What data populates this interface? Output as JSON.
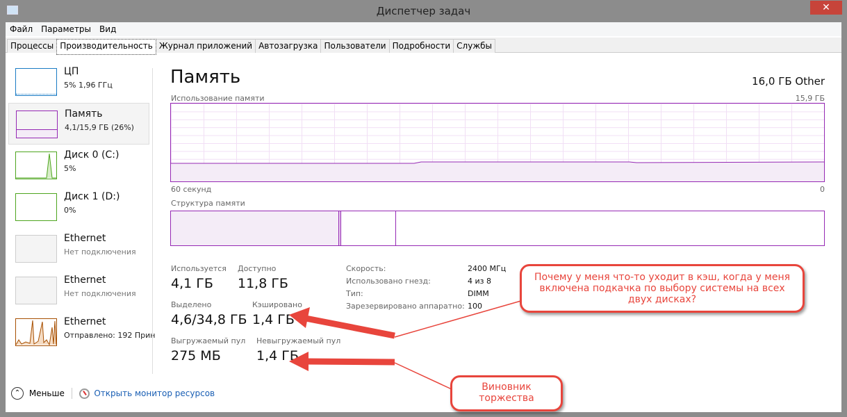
{
  "window": {
    "title": "Диспетчер задач",
    "close_icon": "close-icon"
  },
  "menu": [
    "Файл",
    "Параметры",
    "Вид"
  ],
  "tabs": [
    "Процессы",
    "Производительность",
    "Журнал приложений",
    "Автозагрузка",
    "Пользователи",
    "Подробности",
    "Службы"
  ],
  "active_tab": "Производительность",
  "sidebar": [
    {
      "name": "ЦП",
      "sub": "5%  1,96 ГГц",
      "color": "#1a7bc4"
    },
    {
      "name": "Память",
      "sub": "4,1/15,9 ГБ (26%)",
      "color": "#9528b4"
    },
    {
      "name": "Диск 0 (C:)",
      "sub": "5%",
      "color": "#4da51e"
    },
    {
      "name": "Диск 1 (D:)",
      "sub": "0%",
      "color": "#4da51e"
    },
    {
      "name": "Ethernet",
      "sub": "Нет подключения",
      "color": "#bbbbbb"
    },
    {
      "name": "Ethernet",
      "sub": "Нет подключения",
      "color": "#bbbbbb"
    },
    {
      "name": "Ethernet",
      "sub": "Отправлено: 192 Прин",
      "color": "#a74f01"
    }
  ],
  "main": {
    "title": "Память",
    "total": "16,0 ГБ Other",
    "usage_label": "Использование памяти",
    "usage_max": "15,9 ГБ",
    "time_left": "60 секунд",
    "time_right": "0",
    "structure_label": "Структура памяти",
    "stats": [
      {
        "label": "Используется",
        "value": "4,1 ГБ"
      },
      {
        "label": "Доступно",
        "value": "11,8 ГБ"
      },
      {
        "label": "Выделено",
        "value": "4,6/34,8 ГБ"
      },
      {
        "label": "Кэшировано",
        "value": "1,4 ГБ"
      },
      {
        "label": "Выгружаемый пул",
        "value": "275 МБ"
      },
      {
        "label": "Невыгружаемый пул",
        "value": "1,4 ГБ"
      }
    ],
    "details": [
      {
        "k": "Скорость:",
        "v": "2400 МГц"
      },
      {
        "k": "Использовано гнезд:",
        "v": "4 из 8"
      },
      {
        "k": "Тип:",
        "v": "DIMM"
      },
      {
        "k": "Зарезервировано аппаратно:",
        "v": "100"
      }
    ]
  },
  "footer": {
    "less": "Меньше",
    "monitor": "Открыть монитор ресурсов"
  },
  "annotations": {
    "callout1": "Почему у меня что-то уходит в кэш, когда у меня включена подкачка по выбору системы на всех двух дисках?",
    "callout2": "Виновник торжества",
    "color": "#e8453c"
  }
}
